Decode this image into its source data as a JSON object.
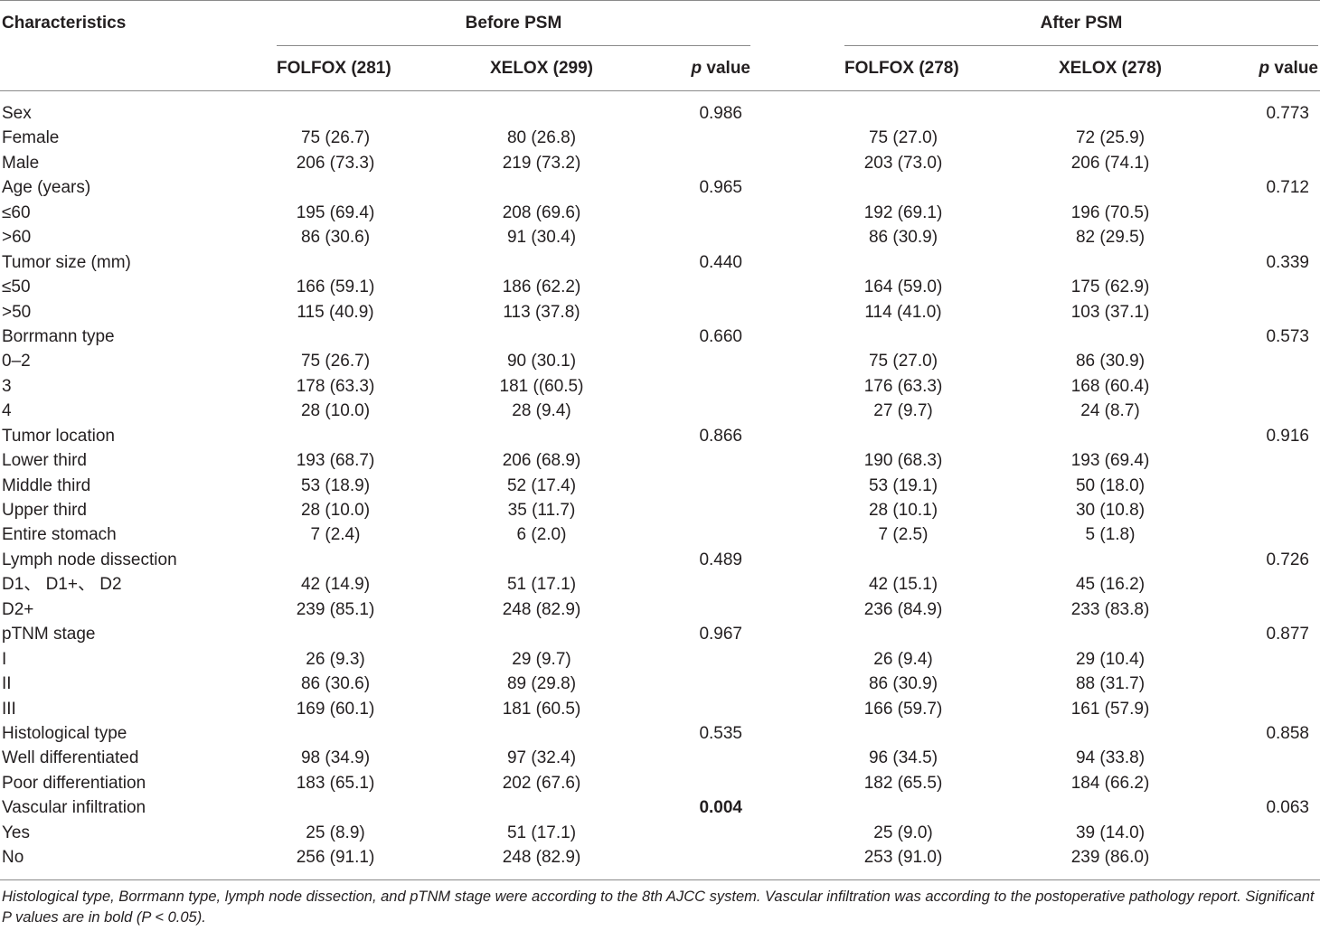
{
  "header": {
    "characteristics": "Characteristics",
    "before_group": "Before PSM",
    "after_group": "After PSM",
    "before_folfox": "FOLFOX (281)",
    "before_xelox": "XELOX (299)",
    "after_folfox": "FOLFOX (278)",
    "after_xelox": "XELOX (278)",
    "p_letter": "p",
    "p_rest": " value"
  },
  "rows": [
    {
      "label": "Sex",
      "b_folfox": "",
      "b_xelox": "",
      "b_p": "0.986",
      "a_folfox": "",
      "a_xelox": "",
      "a_p": "0.773"
    },
    {
      "label": "Female",
      "b_folfox": "75 (26.7)",
      "b_xelox": "80 (26.8)",
      "b_p": "",
      "a_folfox": "75 (27.0)",
      "a_xelox": "72 (25.9)",
      "a_p": ""
    },
    {
      "label": "Male",
      "b_folfox": "206 (73.3)",
      "b_xelox": "219 (73.2)",
      "b_p": "",
      "a_folfox": "203 (73.0)",
      "a_xelox": "206 (74.1)",
      "a_p": ""
    },
    {
      "label": "Age (years)",
      "b_folfox": "",
      "b_xelox": "",
      "b_p": "0.965",
      "a_folfox": "",
      "a_xelox": "",
      "a_p": "0.712"
    },
    {
      "label": "≤60",
      "b_folfox": "195 (69.4)",
      "b_xelox": "208 (69.6)",
      "b_p": "",
      "a_folfox": "192 (69.1)",
      "a_xelox": "196 (70.5)",
      "a_p": ""
    },
    {
      "label": ">60",
      "b_folfox": "86 (30.6)",
      "b_xelox": "91 (30.4)",
      "b_p": "",
      "a_folfox": "86 (30.9)",
      "a_xelox": "82 (29.5)",
      "a_p": ""
    },
    {
      "label": "Tumor size (mm)",
      "b_folfox": "",
      "b_xelox": "",
      "b_p": "0.440",
      "a_folfox": "",
      "a_xelox": "",
      "a_p": "0.339"
    },
    {
      "label": "≤50",
      "b_folfox": "166 (59.1)",
      "b_xelox": "186 (62.2)",
      "b_p": "",
      "a_folfox": "164 (59.0)",
      "a_xelox": "175 (62.9)",
      "a_p": ""
    },
    {
      "label": ">50",
      "b_folfox": "115 (40.9)",
      "b_xelox": "113 (37.8)",
      "b_p": "",
      "a_folfox": "114 (41.0)",
      "a_xelox": "103 (37.1)",
      "a_p": ""
    },
    {
      "label": "Borrmann type",
      "b_folfox": "",
      "b_xelox": "",
      "b_p": "0.660",
      "a_folfox": "",
      "a_xelox": "",
      "a_p": "0.573"
    },
    {
      "label": "0–2",
      "b_folfox": "75 (26.7)",
      "b_xelox": "90 (30.1)",
      "b_p": "",
      "a_folfox": "75 (27.0)",
      "a_xelox": "86 (30.9)",
      "a_p": ""
    },
    {
      "label": "3",
      "b_folfox": "178 (63.3)",
      "b_xelox": "181 ((60.5)",
      "b_p": "",
      "a_folfox": "176 (63.3)",
      "a_xelox": "168 (60.4)",
      "a_p": ""
    },
    {
      "label": "4",
      "b_folfox": "28 (10.0)",
      "b_xelox": "28 (9.4)",
      "b_p": "",
      "a_folfox": "27 (9.7)",
      "a_xelox": "24 (8.7)",
      "a_p": ""
    },
    {
      "label": "Tumor location",
      "b_folfox": "",
      "b_xelox": "",
      "b_p": "0.866",
      "a_folfox": "",
      "a_xelox": "",
      "a_p": "0.916"
    },
    {
      "label": "Lower third",
      "b_folfox": "193 (68.7)",
      "b_xelox": "206 (68.9)",
      "b_p": "",
      "a_folfox": "190 (68.3)",
      "a_xelox": "193 (69.4)",
      "a_p": ""
    },
    {
      "label": "Middle third",
      "b_folfox": "53 (18.9)",
      "b_xelox": "52 (17.4)",
      "b_p": "",
      "a_folfox": "53 (19.1)",
      "a_xelox": "50 (18.0)",
      "a_p": ""
    },
    {
      "label": "Upper third",
      "b_folfox": "28 (10.0)",
      "b_xelox": "35 (11.7)",
      "b_p": "",
      "a_folfox": "28 (10.1)",
      "a_xelox": "30 (10.8)",
      "a_p": ""
    },
    {
      "label": "Entire stomach",
      "b_folfox": "7 (2.4)",
      "b_xelox": "6 (2.0)",
      "b_p": "",
      "a_folfox": "7 (2.5)",
      "a_xelox": "5 (1.8)",
      "a_p": ""
    },
    {
      "label": "Lymph node dissection",
      "b_folfox": "",
      "b_xelox": "",
      "b_p": "0.489",
      "a_folfox": "",
      "a_xelox": "",
      "a_p": "0.726"
    },
    {
      "label": "D1、 D1+、 D2",
      "b_folfox": "42 (14.9)",
      "b_xelox": "51 (17.1)",
      "b_p": "",
      "a_folfox": "42 (15.1)",
      "a_xelox": "45 (16.2)",
      "a_p": ""
    },
    {
      "label": "D2+",
      "b_folfox": "239 (85.1)",
      "b_xelox": "248 (82.9)",
      "b_p": "",
      "a_folfox": "236 (84.9)",
      "a_xelox": "233 (83.8)",
      "a_p": ""
    },
    {
      "label": "pTNM stage",
      "b_folfox": "",
      "b_xelox": "",
      "b_p": "0.967",
      "a_folfox": "",
      "a_xelox": "",
      "a_p": "0.877"
    },
    {
      "label": "I",
      "b_folfox": "26 (9.3)",
      "b_xelox": "29 (9.7)",
      "b_p": "",
      "a_folfox": "26 (9.4)",
      "a_xelox": "29 (10.4)",
      "a_p": ""
    },
    {
      "label": "II",
      "b_folfox": "86 (30.6)",
      "b_xelox": "89 (29.8)",
      "b_p": "",
      "a_folfox": "86 (30.9)",
      "a_xelox": "88 (31.7)",
      "a_p": ""
    },
    {
      "label": "III",
      "b_folfox": "169 (60.1)",
      "b_xelox": "181 (60.5)",
      "b_p": "",
      "a_folfox": "166 (59.7)",
      "a_xelox": "161 (57.9)",
      "a_p": ""
    },
    {
      "label": "Histological type",
      "b_folfox": "",
      "b_xelox": "",
      "b_p": "0.535",
      "a_folfox": "",
      "a_xelox": "",
      "a_p": "0.858"
    },
    {
      "label": "Well differentiated",
      "b_folfox": "98 (34.9)",
      "b_xelox": "97 (32.4)",
      "b_p": "",
      "a_folfox": "96 (34.5)",
      "a_xelox": "94 (33.8)",
      "a_p": ""
    },
    {
      "label": "Poor differentiation",
      "b_folfox": "183 (65.1)",
      "b_xelox": "202 (67.6)",
      "b_p": "",
      "a_folfox": "182 (65.5)",
      "a_xelox": "184 (66.2)",
      "a_p": ""
    },
    {
      "label": "Vascular infiltration",
      "b_folfox": "",
      "b_xelox": "",
      "b_p": "0.004",
      "b_p_bold": true,
      "a_folfox": "",
      "a_xelox": "",
      "a_p": "0.063"
    },
    {
      "label": "Yes",
      "b_folfox": "25 (8.9)",
      "b_xelox": "51 (17.1)",
      "b_p": "",
      "a_folfox": "25 (9.0)",
      "a_xelox": "39 (14.0)",
      "a_p": ""
    },
    {
      "label": "No",
      "b_folfox": "256 (91.1)",
      "b_xelox": "248 (82.9)",
      "b_p": "",
      "a_folfox": "253 (91.0)",
      "a_xelox": "239 (86.0)",
      "a_p": ""
    }
  ],
  "footnote": "Histological type, Borrmann type, lymph node dissection, and pTNM stage were according to the 8th AJCC system. Vascular infiltration was according to the postoperative pathology report. Significant P values are in bold (P < 0.05)."
}
